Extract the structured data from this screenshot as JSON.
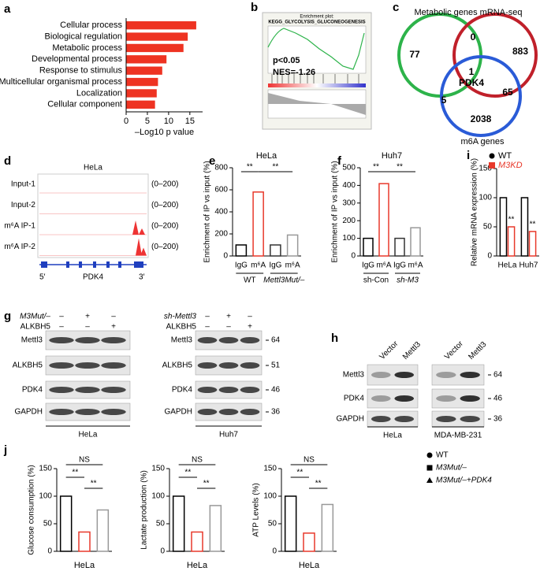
{
  "chart_data": [
    {
      "type": "hbar",
      "panel": "a",
      "categories": [
        "Cellular process",
        "Biological regulation",
        "Metabolic process",
        "Developmental process",
        "Response to stimulus",
        "Multicellular organismal process",
        "Localization",
        "Cellular component"
      ],
      "values": [
        16.5,
        14.5,
        13.5,
        9.5,
        8.5,
        7.5,
        7.2,
        6.8
      ],
      "color": "#ee3322",
      "xlim": [
        0,
        18
      ],
      "xticks": [
        0,
        5,
        10,
        15
      ],
      "xlabel": "–Log10 p value"
    },
    {
      "type": "bar",
      "panel": "e",
      "title": "HeLa",
      "ylabel": "Enrichment of IP vs input (%)",
      "categories": [
        "IgG",
        "m⁶A",
        "IgG",
        "m⁶A"
      ],
      "groups": [
        "WT",
        "Mettl3Mut/–"
      ],
      "values": [
        100,
        580,
        100,
        190
      ],
      "colors": [
        "#000000",
        "#e8392b",
        "#333333",
        "#999999"
      ],
      "ylim": [
        0,
        800
      ],
      "yticks": [
        0,
        200,
        400,
        600,
        800
      ],
      "significance": [
        "**",
        "**"
      ]
    },
    {
      "type": "bar",
      "panel": "f",
      "title": "Huh7",
      "ylabel": "Enrichment of IP vs input (%)",
      "categories": [
        "IgG",
        "m⁶A",
        "IgG",
        "m⁶A"
      ],
      "groups": [
        "sh-Con",
        "sh-M3"
      ],
      "values": [
        100,
        410,
        100,
        160
      ],
      "colors": [
        "#000000",
        "#e8392b",
        "#333333",
        "#999999"
      ],
      "ylim": [
        0,
        500
      ],
      "yticks": [
        0,
        100,
        200,
        300,
        400,
        500
      ],
      "significance": [
        "**",
        "**"
      ]
    },
    {
      "type": "bar",
      "panel": "i",
      "ylabel": "Relative mRNA expression (%)",
      "categories": [
        "HeLa",
        "Huh7"
      ],
      "series": [
        {
          "name": "WT",
          "color": "#000000",
          "values": [
            100,
            100
          ]
        },
        {
          "name": "M3KD",
          "color": "#e8392b",
          "values": [
            50,
            42
          ]
        }
      ],
      "ylim": [
        0,
        150
      ],
      "yticks": [
        0,
        50,
        100,
        150
      ],
      "significance": [
        "**",
        "**"
      ]
    },
    {
      "type": "bar",
      "panel": "j",
      "ylabel": "Glucose consumption (%)",
      "xlabel": "HeLa",
      "values": [
        100,
        35,
        75
      ],
      "colors": [
        "#000000",
        "#e8392b",
        "#999999"
      ],
      "ylim": [
        0,
        150
      ],
      "yticks": [
        0,
        50,
        100,
        150
      ],
      "significance": [
        "NS",
        "**",
        "**"
      ]
    },
    {
      "type": "bar",
      "ylabel": "Lactate production (%)",
      "xlabel": "HeLa",
      "values": [
        100,
        35,
        83
      ],
      "colors": [
        "#000000",
        "#e8392b",
        "#999999"
      ],
      "ylim": [
        0,
        150
      ],
      "yticks": [
        0,
        50,
        100,
        150
      ],
      "significance": [
        "NS",
        "**",
        "**"
      ]
    },
    {
      "type": "bar",
      "ylabel": "ATP Levels (%)",
      "xlabel": "HeLa",
      "values": [
        100,
        33,
        85
      ],
      "colors": [
        "#000000",
        "#e8392b",
        "#999999"
      ],
      "ylim": [
        0,
        150
      ],
      "yticks": [
        0,
        50,
        100,
        150
      ],
      "significance": [
        "NS",
        "**",
        "**"
      ]
    }
  ],
  "j_legend": [
    "WT",
    "M3Mut/–",
    "M3Mut/–+PDK4"
  ],
  "gsea": {
    "panel": "b",
    "title": "Enrichment plot:",
    "subtitle": "KEGG_GLYCOLYSIS_GLUCONEOGENESIS",
    "p": "p<0.05",
    "nes": "NES=-1.26"
  },
  "venn": {
    "panel": "c",
    "top_label": "Metabolic genes mRNA-seq",
    "bottom_label": "m6A genes",
    "counts": [
      77,
      0,
      883,
      1,
      5,
      65,
      2038
    ],
    "gene": "PDK4"
  },
  "tracks": {
    "panel": "d",
    "title": "HeLa",
    "labels": [
      "Input-1",
      "Input-2",
      "m⁶A IP-1",
      "m⁶A IP-2"
    ],
    "ranges": [
      "(0–200)",
      "(0–200)",
      "(0–200)",
      "(0–200)"
    ],
    "five": "5′",
    "gene": "PDK4",
    "three": "3′"
  },
  "blots_g": {
    "panel": "g",
    "left": {
      "treatments": [
        {
          "name": "M3Mut/–",
          "signs": [
            "–",
            "+",
            "–"
          ]
        },
        {
          "name": "ALKBH5",
          "signs": [
            "–",
            "–",
            "+"
          ]
        }
      ],
      "proteins": [
        "Mettl3",
        "ALKBH5",
        "PDK4",
        "GAPDH"
      ],
      "cell": "HeLa"
    },
    "right": {
      "treatments": [
        {
          "name": "sh-Mettl3",
          "signs": [
            "–",
            "+",
            "–"
          ]
        },
        {
          "name": "ALKBH5",
          "signs": [
            "–",
            "–",
            "+"
          ]
        }
      ],
      "proteins": [
        "Mettl3",
        "ALKBH5",
        "PDK4",
        "GAPDH"
      ],
      "markers": [
        64,
        51,
        46,
        36
      ],
      "cell": "Huh7"
    }
  },
  "blots_h": {
    "panel": "h",
    "blots": [
      {
        "lanes": [
          "Vector",
          "Mettl3"
        ],
        "cell": "HeLa"
      },
      {
        "lanes": [
          "Vector",
          "Mettl3"
        ],
        "cell": "MDA-MB-231"
      }
    ],
    "proteins": [
      "Mettl3",
      "PDK4",
      "GAPDH"
    ],
    "markers": [
      64,
      46,
      36
    ]
  }
}
